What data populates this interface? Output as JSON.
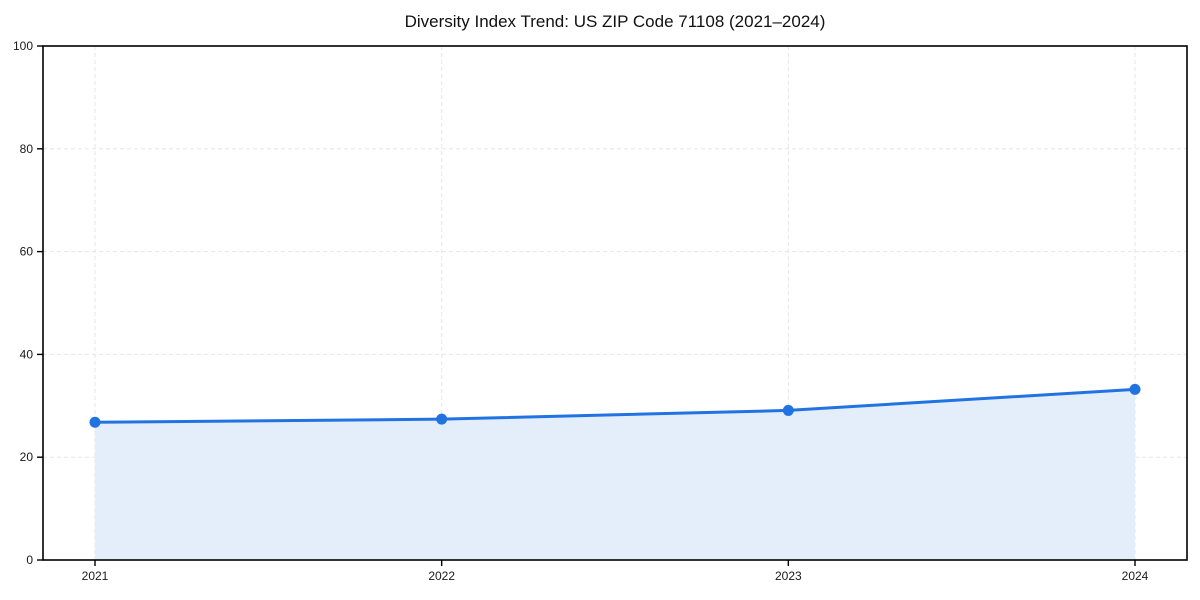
{
  "chart_data": {
    "type": "area",
    "title": "Diversity Index Trend: US ZIP Code 71108 (2021–2024)",
    "series_name": "Diversity Index",
    "x": [
      "2021",
      "2022",
      "2023",
      "2024"
    ],
    "values": [
      26.8,
      27.4,
      29.1,
      33.2
    ],
    "xlabel": "",
    "ylabel": "",
    "ylim": [
      0,
      100
    ],
    "yticks": [
      0,
      20,
      40,
      60,
      80,
      100
    ],
    "grid": true,
    "grid_style": "dashed",
    "legend": false,
    "colors": {
      "line": "#2273e2",
      "marker": "#2273e2",
      "fill": "#e4eefb",
      "grid": "#e6e6e6",
      "spine": "#000000",
      "tick_label": "#1a1a1a",
      "background": "#ffffff"
    }
  }
}
